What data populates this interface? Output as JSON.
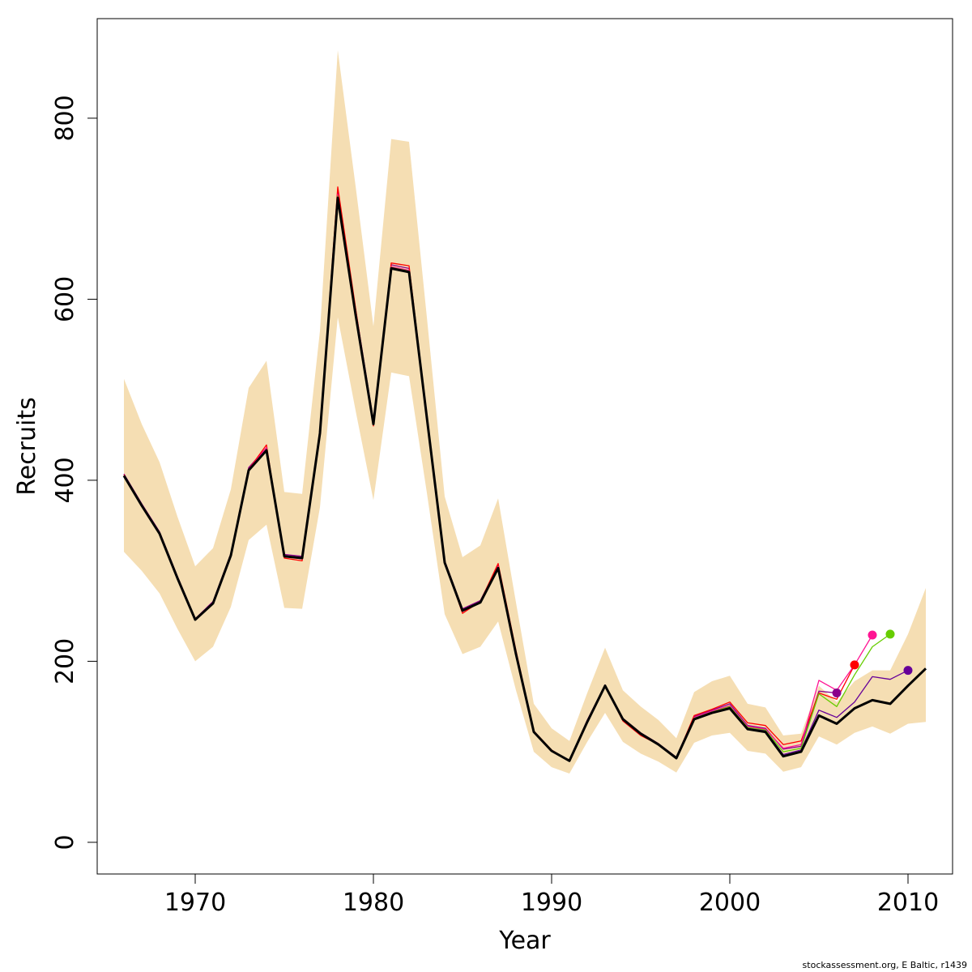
{
  "chart_data": {
    "type": "line",
    "xlabel": "Year",
    "ylabel": "Recruits",
    "xlim": [
      1964.5,
      2012.5
    ],
    "ylim": [
      -35,
      910
    ],
    "x_ticks": [
      1970,
      1980,
      1990,
      2000,
      2010
    ],
    "x_tick_labels": [
      "1970",
      "1980",
      "1990",
      "2000",
      "2010"
    ],
    "y_ticks": [
      0,
      200,
      400,
      600,
      800
    ],
    "y_tick_labels": [
      "0",
      "200",
      "400",
      "600",
      "800"
    ],
    "grid": false,
    "colors": {
      "band": "#f5deb3",
      "main": "#000000",
      "retro": [
        "#8b008b",
        "#ff0000",
        "#ff1493",
        "#66cd00",
        "#660099"
      ]
    },
    "confidence_band": {
      "x": [
        1966,
        1967,
        1968,
        1969,
        1970,
        1971,
        1972,
        1973,
        1974,
        1975,
        1976,
        1977,
        1978,
        1979,
        1980,
        1981,
        1982,
        1983,
        1984,
        1985,
        1986,
        1987,
        1988,
        1989,
        1990,
        1991,
        1992,
        1993,
        1994,
        1995,
        1996,
        1997,
        1998,
        1999,
        2000,
        2001,
        2002,
        2003,
        2004,
        2005,
        2006,
        2007,
        2008,
        2009,
        2010,
        2011
      ],
      "upper": [
        512,
        462,
        420,
        360,
        305,
        325,
        390,
        502,
        532,
        387,
        385,
        565,
        875,
        725,
        570,
        777,
        774,
        580,
        382,
        315,
        328,
        380,
        265,
        153,
        126,
        112,
        165,
        215,
        168,
        150,
        135,
        115,
        166,
        178,
        184,
        153,
        149,
        118,
        120,
        173,
        155,
        178,
        190,
        190,
        230,
        281
      ],
      "lower": [
        321,
        300,
        275,
        236,
        200,
        216,
        260,
        334,
        351,
        259,
        258,
        370,
        580,
        477,
        378,
        519,
        515,
        386,
        252,
        208,
        216,
        244,
        168,
        100,
        83,
        76,
        111,
        143,
        111,
        98,
        89,
        77,
        110,
        118,
        121,
        101,
        98,
        78,
        83,
        117,
        108,
        121,
        128,
        120,
        131,
        133
      ]
    },
    "series": [
      {
        "x": [
          1966,
          1967,
          1968,
          1969,
          1970,
          1971,
          1972,
          1973,
          1974,
          1975,
          1976,
          1977,
          1978,
          1979,
          1980,
          1981,
          1982,
          1983,
          1984,
          1985,
          1986,
          1987,
          1988,
          1989,
          1990,
          1991,
          1992,
          1993,
          1994,
          1995,
          1996,
          1997,
          1998,
          1999,
          2000,
          2001,
          2002,
          2003,
          2004,
          2005,
          2006,
          2007,
          2008,
          2009,
          2010,
          2011
        ],
        "values": [
          405,
          372,
          341,
          292,
          246,
          264,
          317,
          411,
          433,
          316,
          314,
          452,
          712,
          583,
          462,
          634,
          630,
          469,
          309,
          256,
          265,
          303,
          208,
          122,
          101,
          90,
          133,
          173,
          136,
          120,
          108,
          93,
          136,
          143,
          148,
          125,
          122,
          95,
          100,
          140,
          131,
          148,
          157,
          153,
          173,
          192
        ]
      },
      {
        "x": [
          1966,
          1967,
          1968,
          1969,
          1970,
          1971,
          1972,
          1973,
          1974,
          1975,
          1976,
          1977,
          1978,
          1979,
          1980,
          1981,
          1982,
          1983,
          1984,
          1985,
          1986,
          1987,
          1988,
          1989,
          1990,
          1991,
          1992,
          1993,
          1994,
          1995,
          1996,
          1997,
          1998,
          1999,
          2000,
          2001,
          2002,
          2003,
          2004,
          2005,
          2006
        ],
        "values": [
          407,
          374,
          343,
          294,
          247,
          266,
          319,
          414,
          436,
          318,
          316,
          454,
          718,
          589,
          466,
          638,
          634,
          473,
          311,
          258,
          267,
          306,
          210,
          123,
          101,
          90,
          135,
          174,
          137,
          121,
          109,
          94,
          139,
          146,
          153,
          129,
          126,
          103,
          106,
          167,
          165
        ]
      },
      {
        "x": [
          1966,
          1967,
          1968,
          1969,
          1970,
          1971,
          1972,
          1973,
          1974,
          1975,
          1976,
          1977,
          1978,
          1979,
          1980,
          1981,
          1982,
          1983,
          1984,
          1985,
          1986,
          1987,
          1988,
          1989,
          1990,
          1991,
          1992,
          1993,
          1994,
          1995,
          1996,
          1997,
          1998,
          1999,
          2000,
          2001,
          2002,
          2003,
          2004,
          2005,
          2006,
          2007
        ],
        "values": [
          406,
          373,
          342,
          293,
          246,
          265,
          318,
          412,
          439,
          314,
          311,
          453,
          724,
          590,
          460,
          640,
          637,
          471,
          310,
          253,
          266,
          308,
          212,
          123,
          102,
          90,
          134,
          173,
          134,
          118,
          108,
          93,
          140,
          147,
          155,
          132,
          129,
          108,
          112,
          165,
          158,
          196
        ]
      },
      {
        "x": [
          1966,
          1967,
          1968,
          1969,
          1970,
          1971,
          1972,
          1973,
          1974,
          1975,
          1976,
          1977,
          1978,
          1979,
          1980,
          1981,
          1982,
          1983,
          1984,
          1985,
          1986,
          1987,
          1988,
          1989,
          1990,
          1991,
          1992,
          1993,
          1994,
          1995,
          1996,
          1997,
          1998,
          1999,
          2000,
          2001,
          2002,
          2003,
          2004,
          2005,
          2006,
          2007,
          2008
        ],
        "values": [
          405,
          372,
          341,
          292,
          246,
          264,
          317,
          412,
          436,
          316,
          313,
          451,
          716,
          585,
          462,
          636,
          632,
          470,
          309,
          255,
          265,
          305,
          209,
          122,
          101,
          90,
          134,
          173,
          135,
          119,
          108,
          93,
          138,
          145,
          151,
          128,
          125,
          104,
          108,
          179,
          168,
          196,
          229
        ]
      },
      {
        "x": [
          1966,
          1967,
          1968,
          1969,
          1970,
          1971,
          1972,
          1973,
          1974,
          1975,
          1976,
          1977,
          1978,
          1979,
          1980,
          1981,
          1982,
          1983,
          1984,
          1985,
          1986,
          1987,
          1988,
          1989,
          1990,
          1991,
          1992,
          1993,
          1994,
          1995,
          1996,
          1997,
          1998,
          1999,
          2000,
          2001,
          2002,
          2003,
          2004,
          2005,
          2006,
          2007,
          2008,
          2009
        ],
        "values": [
          405,
          372,
          341,
          292,
          246,
          264,
          317,
          411,
          434,
          316,
          314,
          452,
          714,
          584,
          462,
          635,
          631,
          469,
          309,
          256,
          265,
          304,
          208,
          122,
          101,
          90,
          133,
          173,
          136,
          120,
          108,
          93,
          137,
          144,
          150,
          127,
          124,
          100,
          104,
          164,
          150,
          185,
          216,
          230
        ]
      },
      {
        "x": [
          1966,
          1967,
          1968,
          1969,
          1970,
          1971,
          1972,
          1973,
          1974,
          1975,
          1976,
          1977,
          1978,
          1979,
          1980,
          1981,
          1982,
          1983,
          1984,
          1985,
          1986,
          1987,
          1988,
          1989,
          1990,
          1991,
          1992,
          1993,
          1994,
          1995,
          1996,
          1997,
          1998,
          1999,
          2000,
          2001,
          2002,
          2003,
          2004,
          2005,
          2006,
          2007,
          2008,
          2009,
          2010
        ],
        "values": [
          405,
          372,
          341,
          292,
          246,
          264,
          317,
          411,
          433,
          316,
          314,
          452,
          713,
          583,
          462,
          634,
          630,
          469,
          309,
          256,
          265,
          303,
          208,
          122,
          101,
          90,
          133,
          173,
          136,
          120,
          108,
          93,
          136,
          143,
          149,
          126,
          123,
          97,
          102,
          146,
          138,
          155,
          183,
          180,
          190
        ]
      }
    ],
    "endpoints": [
      {
        "x": 2006,
        "y": 165
      },
      {
        "x": 2007,
        "y": 196
      },
      {
        "x": 2008,
        "y": 229
      },
      {
        "x": 2009,
        "y": 230
      },
      {
        "x": 2010,
        "y": 190
      }
    ]
  },
  "credit": "stockassessment.org, E Baltic, r1439"
}
